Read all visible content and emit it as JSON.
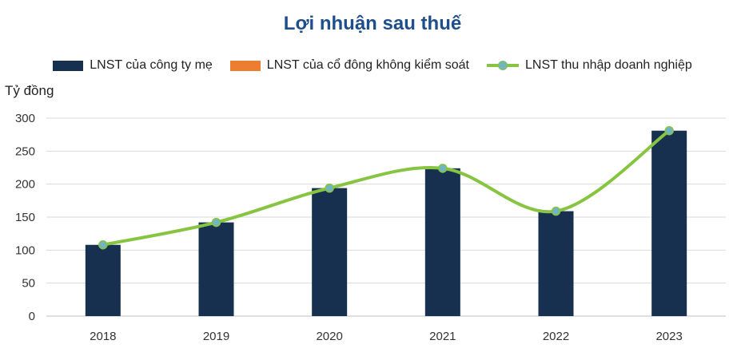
{
  "title": "Lợi nhuận sau thuế",
  "legend": {
    "s1": "LNST của công ty mẹ",
    "s2": "LNST của cổ đông không kiểm soát",
    "s3": "LNST thu nhập doanh nghiệp"
  },
  "colors": {
    "s1": "#17304f",
    "s2": "#ed7d31",
    "s3": "#86c441",
    "marker": "#72b5c0"
  },
  "chart_data": {
    "type": "bar",
    "title": "Lợi nhuận sau thuế",
    "ylabel": "Tỷ đồng",
    "xlabel": "",
    "categories": [
      "2018",
      "2019",
      "2020",
      "2021",
      "2022",
      "2023"
    ],
    "yticks": [
      "0",
      "50",
      "100",
      "150",
      "200",
      "250",
      "300"
    ],
    "ylim": [
      0,
      300
    ],
    "grid": true,
    "legend_position": "top",
    "series": [
      {
        "name": "LNST của công ty mẹ",
        "type": "bar",
        "values": [
          108,
          142,
          194,
          224,
          159,
          281
        ]
      },
      {
        "name": "LNST của cổ đông không kiểm soát",
        "type": "bar",
        "values": [
          0,
          0,
          0,
          0,
          0,
          0
        ]
      },
      {
        "name": "LNST thu nhập doanh nghiệp",
        "type": "line",
        "values": [
          108,
          142,
          194,
          224,
          159,
          281
        ]
      }
    ]
  }
}
